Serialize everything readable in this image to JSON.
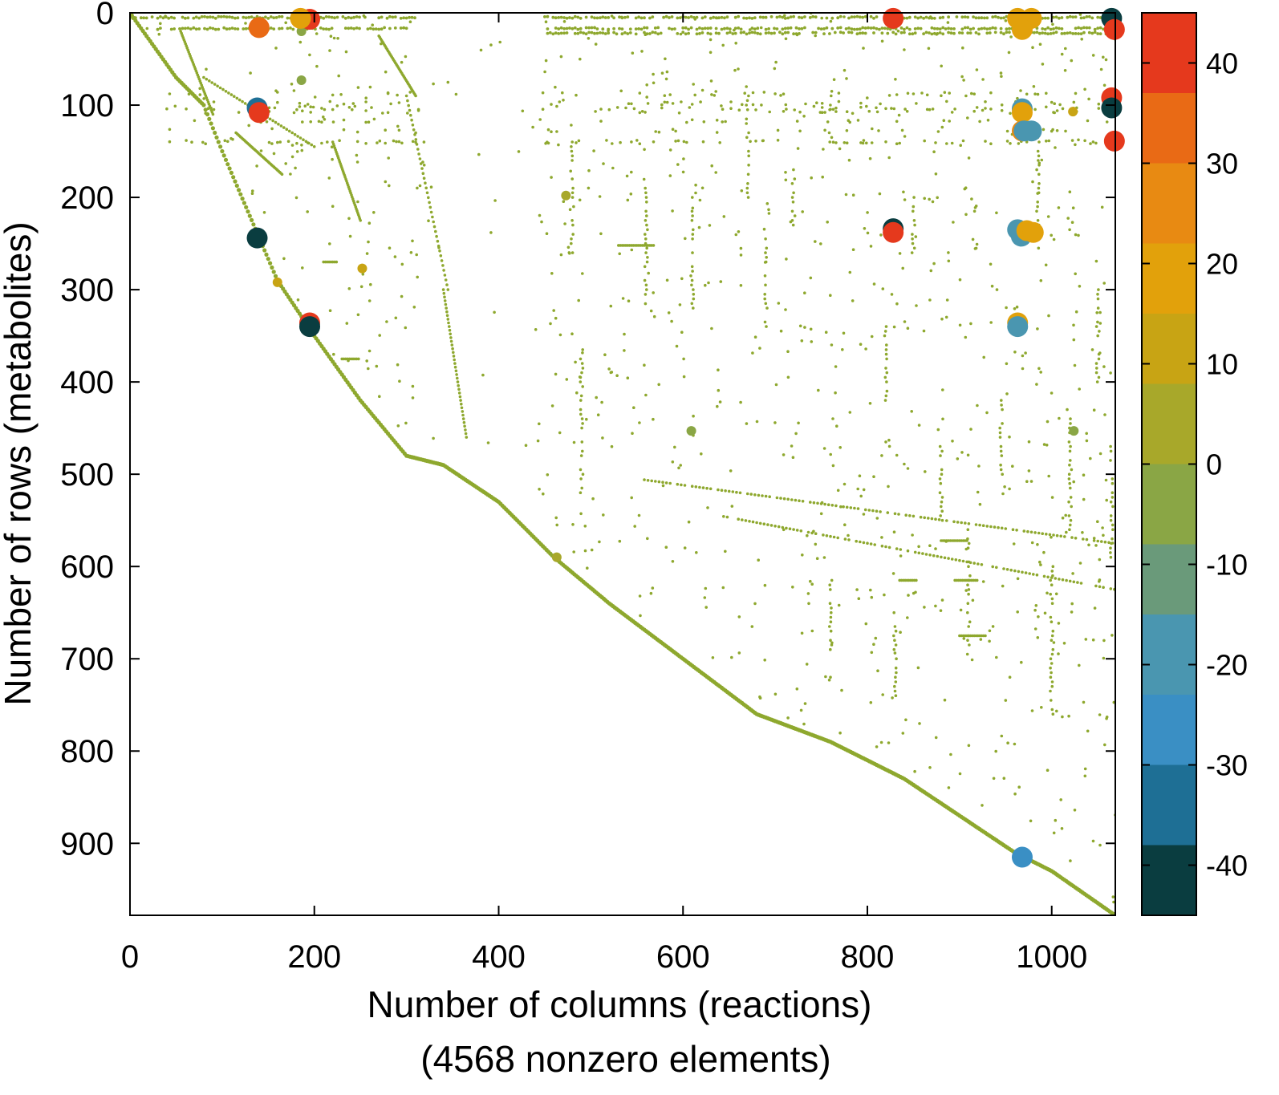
{
  "chart_data": {
    "type": "scatter",
    "title": "",
    "xlabel": "Number of columns (reactions)",
    "xlabel_line2": "(4568 nonzero elements)",
    "ylabel": "Number of rows (metabolites)",
    "xlim": [
      0,
      1069
    ],
    "ylim": [
      978,
      0
    ],
    "xticks": [
      0,
      200,
      400,
      600,
      800,
      1000
    ],
    "yticks": [
      0,
      100,
      200,
      300,
      400,
      500,
      600,
      700,
      800,
      900
    ],
    "colorbar": {
      "range": [
        -45,
        45
      ],
      "ticks": [
        40,
        30,
        20,
        10,
        0,
        -10,
        -20,
        -30,
        -40
      ],
      "colormap": [
        "#0a3d40",
        "#1e6f95",
        "#3a8fc4",
        "#4a96b0",
        "#6a9a7a",
        "#8aa645",
        "#a8a82a",
        "#c8a414",
        "#e2a10b",
        "#e88a12",
        "#e96a15",
        "#e5391d"
      ]
    },
    "sparsity_color": "#8ea82e",
    "diagonal_profile": [
      [
        0,
        0
      ],
      [
        50,
        70
      ],
      [
        80,
        100
      ],
      [
        100,
        150
      ],
      [
        130,
        220
      ],
      [
        160,
        290
      ],
      [
        200,
        350
      ],
      [
        250,
        420
      ],
      [
        300,
        480
      ],
      [
        340,
        490
      ],
      [
        400,
        530
      ],
      [
        460,
        590
      ],
      [
        520,
        640
      ],
      [
        600,
        700
      ],
      [
        680,
        760
      ],
      [
        760,
        790
      ],
      [
        840,
        830
      ],
      [
        900,
        870
      ],
      [
        960,
        910
      ],
      [
        1000,
        930
      ],
      [
        1069,
        978
      ]
    ],
    "large_markers": [
      {
        "x": 140,
        "y": 16,
        "value": 40
      },
      {
        "x": 195,
        "y": 7,
        "value": 42
      },
      {
        "x": 185,
        "y": 6,
        "value": 22
      },
      {
        "x": 138,
        "y": 103,
        "value": -40
      },
      {
        "x": 140,
        "y": 108,
        "value": 42
      },
      {
        "x": 138,
        "y": 244,
        "value": -42
      },
      {
        "x": 195,
        "y": 336,
        "value": 42
      },
      {
        "x": 195,
        "y": 340,
        "value": -42
      },
      {
        "x": 828,
        "y": 6,
        "value": 42
      },
      {
        "x": 828,
        "y": 234,
        "value": -42
      },
      {
        "x": 828,
        "y": 238,
        "value": 42
      },
      {
        "x": 963,
        "y": 6,
        "value": 22
      },
      {
        "x": 978,
        "y": 6,
        "value": 22
      },
      {
        "x": 968,
        "y": 18,
        "value": 22
      },
      {
        "x": 968,
        "y": 104,
        "value": -22
      },
      {
        "x": 968,
        "y": 108,
        "value": 22
      },
      {
        "x": 968,
        "y": 128,
        "value": 28
      },
      {
        "x": 970,
        "y": 128,
        "value": -20
      },
      {
        "x": 978,
        "y": 128,
        "value": -22
      },
      {
        "x": 963,
        "y": 235,
        "value": -22
      },
      {
        "x": 967,
        "y": 242,
        "value": -20
      },
      {
        "x": 973,
        "y": 236,
        "value": 22
      },
      {
        "x": 980,
        "y": 238,
        "value": 22
      },
      {
        "x": 963,
        "y": 336,
        "value": 24
      },
      {
        "x": 963,
        "y": 340,
        "value": -20
      },
      {
        "x": 968,
        "y": 915,
        "value": -28
      },
      {
        "x": 1065,
        "y": 6,
        "value": -42
      },
      {
        "x": 1068,
        "y": 18,
        "value": 42
      },
      {
        "x": 1065,
        "y": 92,
        "value": 42
      },
      {
        "x": 1065,
        "y": 103,
        "value": -42
      },
      {
        "x": 1068,
        "y": 139,
        "value": 42
      }
    ],
    "medium_markers": [
      {
        "x": 186,
        "y": 73,
        "value": -8
      },
      {
        "x": 186,
        "y": 20,
        "value": -4
      },
      {
        "x": 160,
        "y": 292,
        "value": 14
      },
      {
        "x": 252,
        "y": 277,
        "value": 16
      },
      {
        "x": 463,
        "y": 590,
        "value": 6
      },
      {
        "x": 473,
        "y": 198,
        "value": 4
      },
      {
        "x": 609,
        "y": 453,
        "value": -4
      },
      {
        "x": 1024,
        "y": 453,
        "value": -6
      },
      {
        "x": 1023,
        "y": 107,
        "value": 14
      }
    ]
  }
}
